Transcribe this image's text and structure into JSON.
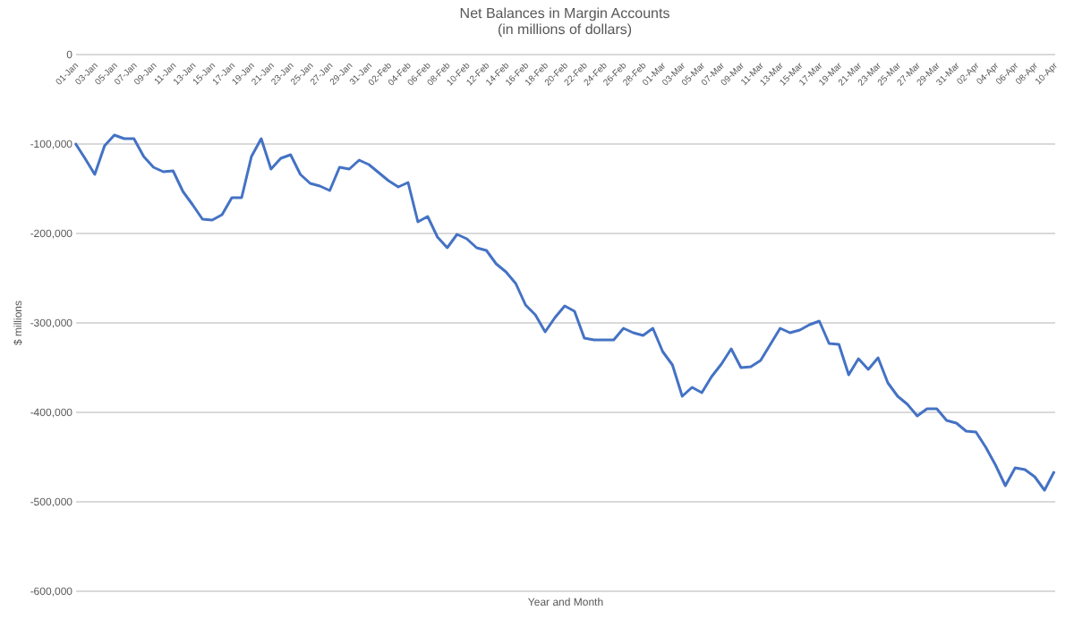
{
  "chart_data": {
    "type": "line",
    "title": "Net Balances in Margin Accounts",
    "subtitle": "(in millions of dollars)",
    "xlabel": "Year and Month",
    "ylabel": "$ millions",
    "categories": [
      "01-Jan",
      null,
      "03-Jan",
      null,
      "05-Jan",
      null,
      "07-Jan",
      null,
      "09-Jan",
      null,
      "11-Jan",
      null,
      "13-Jan",
      null,
      "15-Jan",
      null,
      "17-Jan",
      null,
      "19-Jan",
      null,
      "21-Jan",
      null,
      "23-Jan",
      null,
      "25-Jan",
      null,
      "27-Jan",
      null,
      "29-Jan",
      null,
      "31-Jan",
      null,
      "02-Feb",
      null,
      "04-Feb",
      null,
      "06-Feb",
      null,
      "08-Feb",
      null,
      "10-Feb",
      null,
      "12-Feb",
      null,
      "14-Feb",
      null,
      "16-Feb",
      null,
      "18-Feb",
      null,
      "20-Feb",
      null,
      "22-Feb",
      null,
      "24-Feb",
      null,
      "26-Feb",
      null,
      "28-Feb",
      null,
      "01-Mar",
      null,
      "03-Mar",
      null,
      "05-Mar",
      null,
      "07-Mar",
      null,
      "09-Mar",
      null,
      "11-Mar",
      null,
      "13-Mar",
      null,
      "15-Mar",
      null,
      "17-Mar",
      null,
      "19-Mar",
      null,
      "21-Mar",
      null,
      "23-Mar",
      null,
      "25-Mar",
      null,
      "27-Mar",
      null,
      "29-Mar",
      null,
      "31-Mar",
      null,
      "02-Apr",
      null,
      "04-Apr",
      null,
      "06-Apr",
      null,
      "08-Apr",
      null,
      "10-Apr"
    ],
    "series": [
      {
        "color": "#4472c4",
        "values": [
          -100000,
          -117000,
          -135000,
          -103000,
          -91000,
          -95000,
          -95000,
          -115000,
          -127000,
          -132000,
          -131000,
          -154000,
          -169000,
          -185000,
          -186000,
          -180000,
          -161000,
          -161000,
          -115000,
          -95000,
          -129000,
          -117000,
          -113000,
          -135000,
          -145000,
          -148000,
          -153000,
          -127000,
          -129000,
          -119000,
          -124000,
          -133000,
          -142000,
          -149000,
          -144000,
          -188000,
          -182000,
          -205000,
          -217000,
          -202000,
          -207000,
          -217000,
          -220000,
          -235000,
          -244000,
          -257000,
          -281000,
          -292000,
          -311000,
          -295000,
          -282000,
          -288000,
          -318000,
          -320000,
          -320000,
          -320000,
          -307000,
          -312000,
          -315000,
          -307000,
          -333000,
          -348000,
          -383000,
          -373000,
          -379000,
          -361000,
          -347000,
          -330000,
          -351000,
          -350000,
          -343000,
          -325000,
          -307000,
          -312000,
          -309000,
          -303000,
          -299000,
          -324000,
          -325000,
          -359000,
          -341000,
          -353000,
          -340000,
          -368000,
          -383000,
          -392000,
          -405000,
          -397000,
          -397000,
          -410000,
          -413000,
          -422000,
          -423000,
          -440000,
          -460000,
          -483000,
          -463000,
          -465000,
          -473000,
          -488000,
          -467000
        ]
      }
    ],
    "ylim": [
      -600000,
      0
    ],
    "yticks": [
      {
        "value": 0,
        "label": "0"
      },
      {
        "value": -100000,
        "label": "-100,000"
      },
      {
        "value": -200000,
        "label": "-200,000"
      },
      {
        "value": -300000,
        "label": "-300,000"
      },
      {
        "value": -400000,
        "label": "-400,000"
      },
      {
        "value": -500000,
        "label": "-500,000"
      },
      {
        "value": -600000,
        "label": "-600,000"
      }
    ],
    "grid": "y",
    "legend": false,
    "marker": "none",
    "line_style": "solid"
  }
}
